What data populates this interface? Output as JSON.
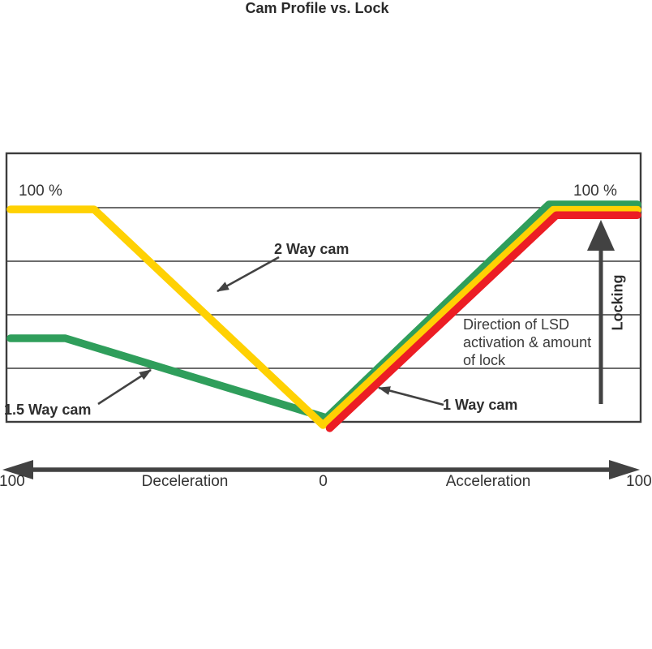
{
  "chart_data": {
    "type": "line",
    "title": "Cam Profile vs. Lock",
    "x_axis": {
      "left_end_label": "100",
      "center_label": "0",
      "right_end_label": "100",
      "left_half_label": "Deceleration",
      "right_half_label": "Acceleration",
      "range": [
        -100,
        100
      ],
      "style": "double-headed arrow"
    },
    "y_axis": {
      "label": "Locking",
      "top_label_left": "100 %",
      "top_label_right": "100 %",
      "range_percent": [
        0,
        100
      ],
      "direction": "lock increases upward"
    },
    "grid_percents": [
      25,
      50,
      75,
      100
    ],
    "grid_on": true,
    "series": [
      {
        "name": "1.5 Way cam",
        "color": "#2F9E5B",
        "lock_at_full_deceleration": 39,
        "lock_at_zero_throttle": 0,
        "lock_at_full_acceleration": 100,
        "points": [
          [
            -99,
            39
          ],
          [
            -81.7,
            39
          ],
          [
            0.8,
            1.9
          ],
          [
            71,
            101.5
          ],
          [
            99,
            101.5
          ]
        ]
      },
      {
        "name": "2 Way cam",
        "color": "#FFD103",
        "lock_at_full_deceleration": 100,
        "lock_at_zero_throttle": 0,
        "lock_at_full_acceleration": 100,
        "points": [
          [
            -99,
            99.2
          ],
          [
            -72.6,
            99.2
          ],
          [
            -0.3,
            -1.5
          ],
          [
            72.4,
            99
          ],
          [
            99,
            99
          ]
        ]
      },
      {
        "name": "1 Way cam",
        "color": "#EC1D24",
        "lock_at_full_deceleration": 0,
        "lock_at_zero_throttle": 0,
        "lock_at_full_acceleration": 100,
        "points": [
          [
            1.8,
            -3
          ],
          [
            73.4,
            96.5
          ],
          [
            99,
            96.5
          ]
        ]
      }
    ],
    "annotation": {
      "text": "Direction of LSD activation & amount of lock"
    },
    "legend_position": "inline labels with pointer arrows"
  },
  "colors": {
    "background": "#FFFFFF",
    "ink": "#3C3C3C",
    "arrow": "#444444",
    "yellow_2way": "#FFD103",
    "green_1_5way": "#2F9E5B",
    "red_1way": "#EC1D24"
  }
}
